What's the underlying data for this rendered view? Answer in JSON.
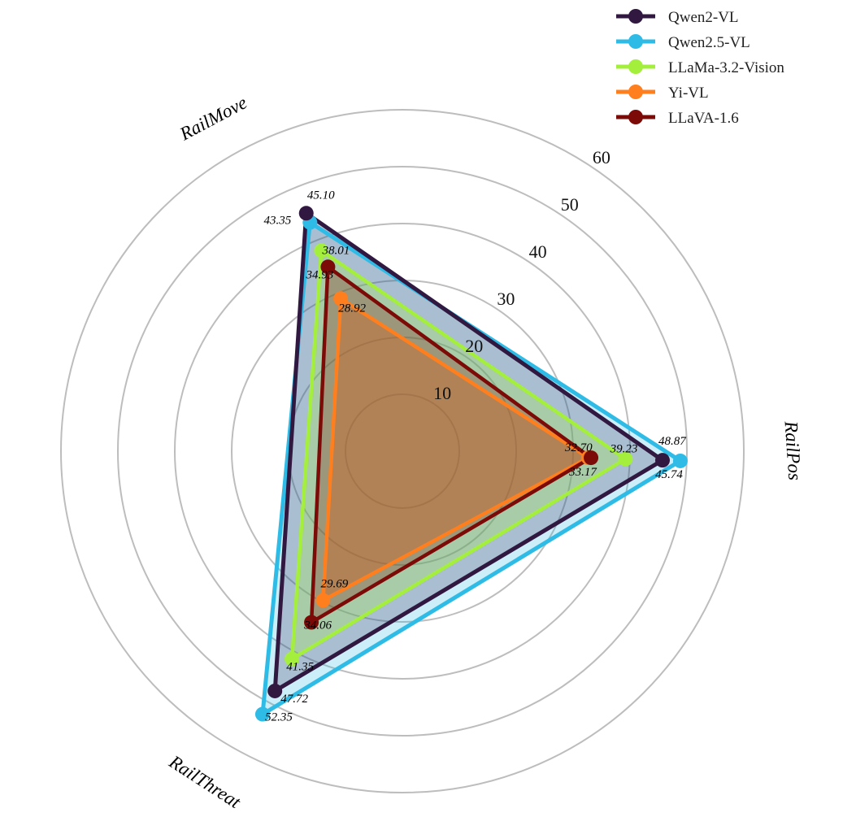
{
  "chart_data": {
    "type": "radar",
    "axes": [
      "RailPos",
      "RailMove",
      "RailThreat"
    ],
    "rlim": [
      0,
      60
    ],
    "r_ticks": [
      "10",
      "20",
      "30",
      "40",
      "50",
      "60"
    ],
    "grid": true,
    "legend": "top-right",
    "series": [
      {
        "name": "Qwen2.5-VL",
        "color": "#2ebbe6",
        "values": [
          48.87,
          43.35,
          52.35
        ],
        "labels": [
          "48.87",
          "43.35",
          "52.35"
        ]
      },
      {
        "name": "Qwen2-VL",
        "color": "#301841",
        "values": [
          45.74,
          45.1,
          47.72
        ],
        "labels": [
          "45.74",
          "45.10",
          "47.72"
        ]
      },
      {
        "name": "LLaMa-3.2-Vision",
        "color": "#a4ef3c",
        "values": [
          39.23,
          38.01,
          41.35
        ],
        "labels": [
          "39.23",
          "38.01",
          "41.35"
        ]
      },
      {
        "name": "Yi-VL",
        "color": "#ff7f1e",
        "values": [
          32.7,
          28.92,
          29.69
        ],
        "labels": [
          "32.70",
          "28.92",
          "29.69"
        ]
      },
      {
        "name": "LLaVA-1.6",
        "color": "#7c0a06",
        "values": [
          33.17,
          34.93,
          34.06
        ],
        "labels": [
          "33.17",
          "34.93",
          "34.06"
        ]
      }
    ],
    "legend_order": [
      "Qwen2-VL",
      "Qwen2.5-VL",
      "LLaMa-3.2-Vision",
      "Yi-VL",
      "LLaVA-1.6"
    ]
  }
}
